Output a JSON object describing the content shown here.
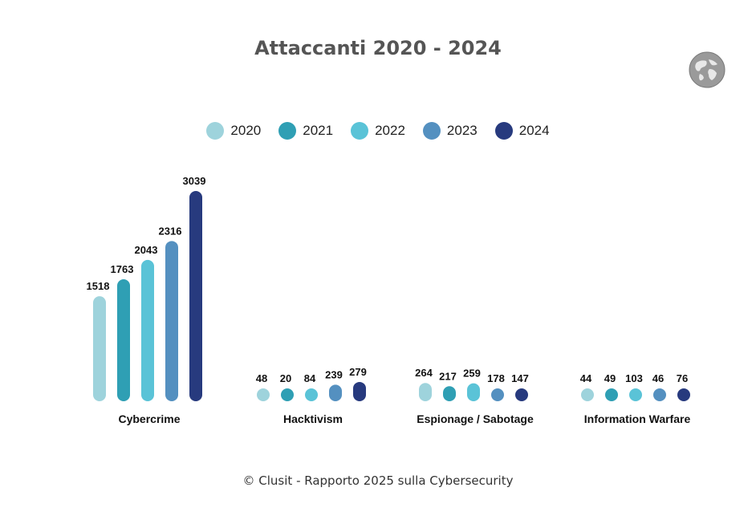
{
  "chart_data": {
    "type": "bar",
    "title": "Attaccanti 2020 - 2024",
    "categories": [
      "Cybercrime",
      "Hacktivism",
      "Espionage / Sabotage",
      "Information Warfare"
    ],
    "series": [
      {
        "name": "2020",
        "color": "#9ed3dc",
        "values": [
          1518,
          48,
          264,
          44
        ]
      },
      {
        "name": "2021",
        "color": "#2f9fb4",
        "values": [
          1763,
          20,
          217,
          49
        ]
      },
      {
        "name": "2022",
        "color": "#5ac3d7",
        "values": [
          2043,
          84,
          259,
          103
        ]
      },
      {
        "name": "2023",
        "color": "#5490c0",
        "values": [
          2316,
          239,
          178,
          46
        ]
      },
      {
        "name": "2024",
        "color": "#273a7e",
        "values": [
          3039,
          279,
          147,
          76
        ]
      }
    ],
    "ylim": [
      0,
      3039
    ],
    "xlabel": "",
    "ylabel": "",
    "legend": "top-center"
  },
  "footer": "© Clusit - Rapporto 2025 sulla Cybersecurity",
  "icons": {
    "logo": "globe-icon"
  }
}
